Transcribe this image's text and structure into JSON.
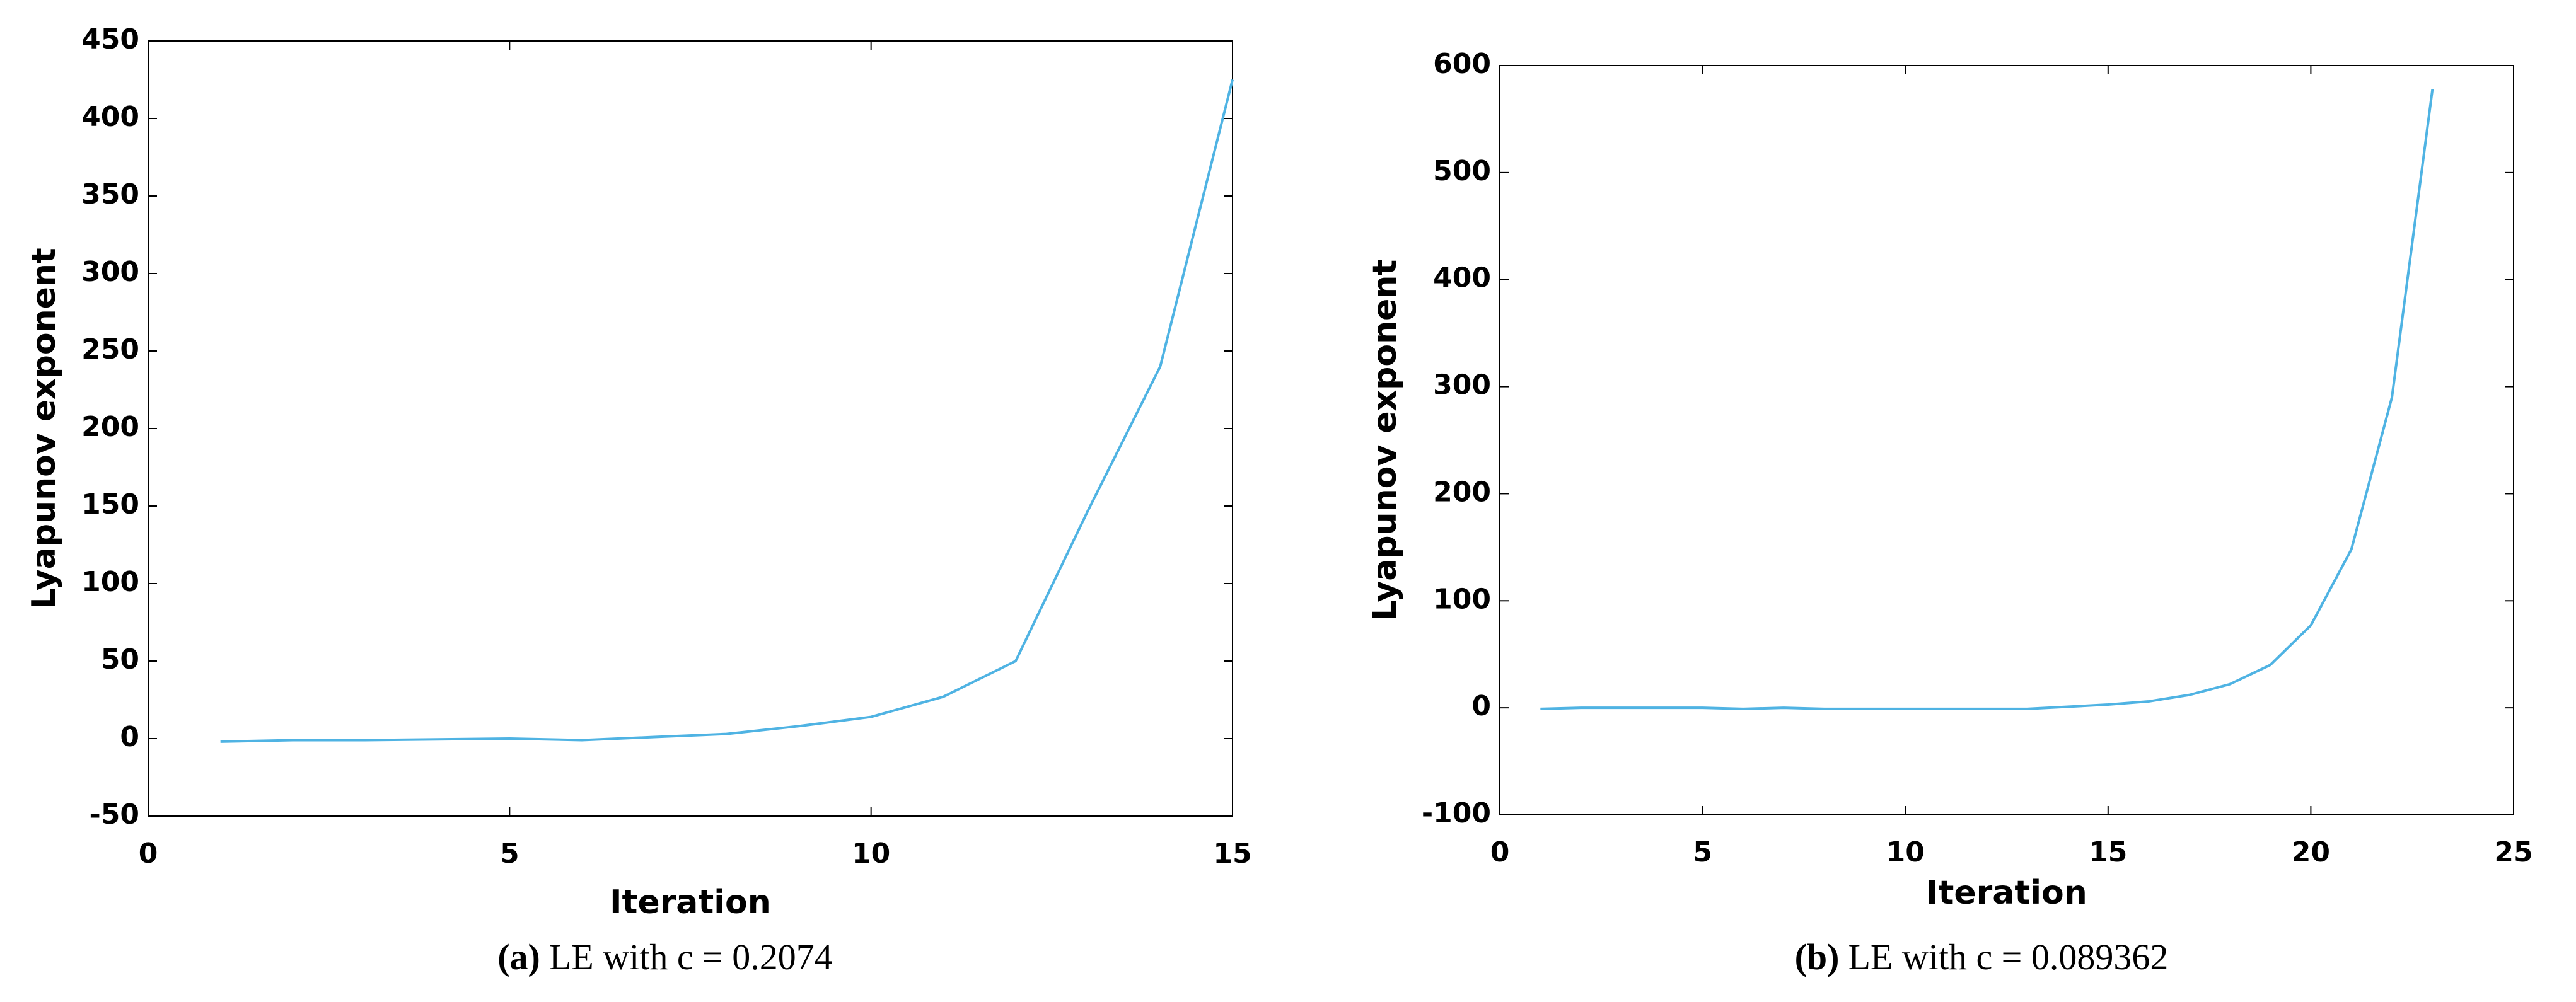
{
  "chart_data": [
    {
      "type": "line",
      "xlabel": "Iteration",
      "ylabel": "Lyapunov exponent",
      "caption_label": "(a)",
      "caption": "LE with c = 0.2074",
      "x": [
        1,
        2,
        3,
        4,
        5,
        6,
        7,
        8,
        9,
        10,
        11,
        12,
        13,
        14,
        15
      ],
      "series": [
        {
          "color": "#4fb3e3",
          "values": [
            -2,
            -1,
            -1,
            -0.5,
            0,
            -1,
            1,
            3,
            8,
            14,
            27,
            50,
            147,
            240,
            425
          ]
        }
      ],
      "xlim": [
        0,
        15
      ],
      "xticks": [
        0,
        5,
        10,
        15
      ],
      "ylim": [
        -50,
        450
      ],
      "yticks": [
        -50,
        0,
        50,
        100,
        150,
        200,
        250,
        300,
        350,
        400,
        450
      ]
    },
    {
      "type": "line",
      "xlabel": "Iteration",
      "ylabel": "Lyapunov exponent",
      "caption_label": "(b)",
      "caption": "LE with c = 0.089362",
      "x": [
        1,
        2,
        3,
        4,
        5,
        6,
        7,
        8,
        9,
        10,
        11,
        12,
        13,
        14,
        15,
        16,
        17,
        18,
        19,
        20,
        21,
        22,
        23
      ],
      "series": [
        {
          "color": "#4fb3e3",
          "values": [
            -1,
            0,
            0,
            0,
            0,
            -1,
            0,
            -1,
            -1,
            -1,
            -1,
            -1,
            -1,
            1,
            3,
            6,
            12,
            22,
            40,
            77,
            148,
            290,
            578
          ]
        }
      ],
      "xlim": [
        0,
        25
      ],
      "xticks": [
        0,
        5,
        10,
        15,
        20,
        25
      ],
      "ylim": [
        -100,
        600
      ],
      "yticks": [
        -100,
        0,
        100,
        200,
        300,
        400,
        500,
        600
      ]
    }
  ]
}
